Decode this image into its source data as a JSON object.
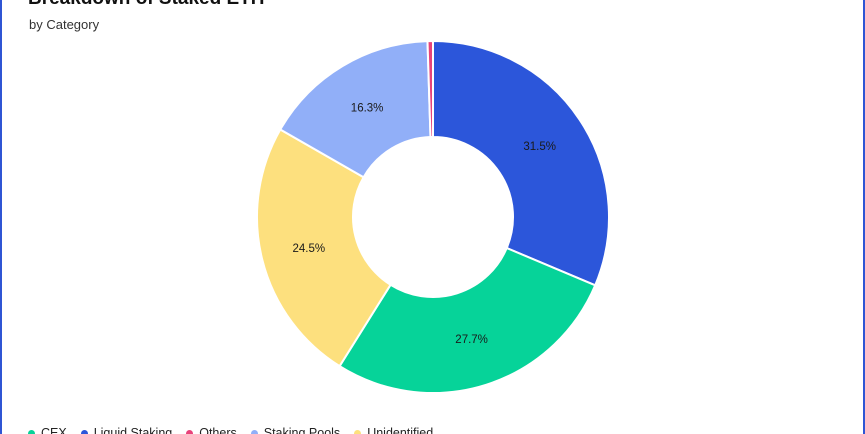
{
  "chart_data": {
    "type": "pie",
    "title": "Breakdown of Staked ETH",
    "subtitle": "by Category",
    "donut": true,
    "legend_position": "bottom-left",
    "categories": [
      "CEX",
      "Liquid Staking",
      "Others",
      "Staking Pools",
      "Unidentified"
    ],
    "values": [
      27.7,
      31.5,
      0.5,
      16.3,
      24.5
    ],
    "labels": [
      "27.7%",
      "31.5%",
      "",
      "16.3%",
      "24.5%"
    ],
    "colors": [
      "#06d399",
      "#2c56da",
      "#e8437a",
      "#91aff8",
      "#fde07e"
    ],
    "draw_order": [
      1,
      0,
      4,
      3,
      2
    ]
  }
}
